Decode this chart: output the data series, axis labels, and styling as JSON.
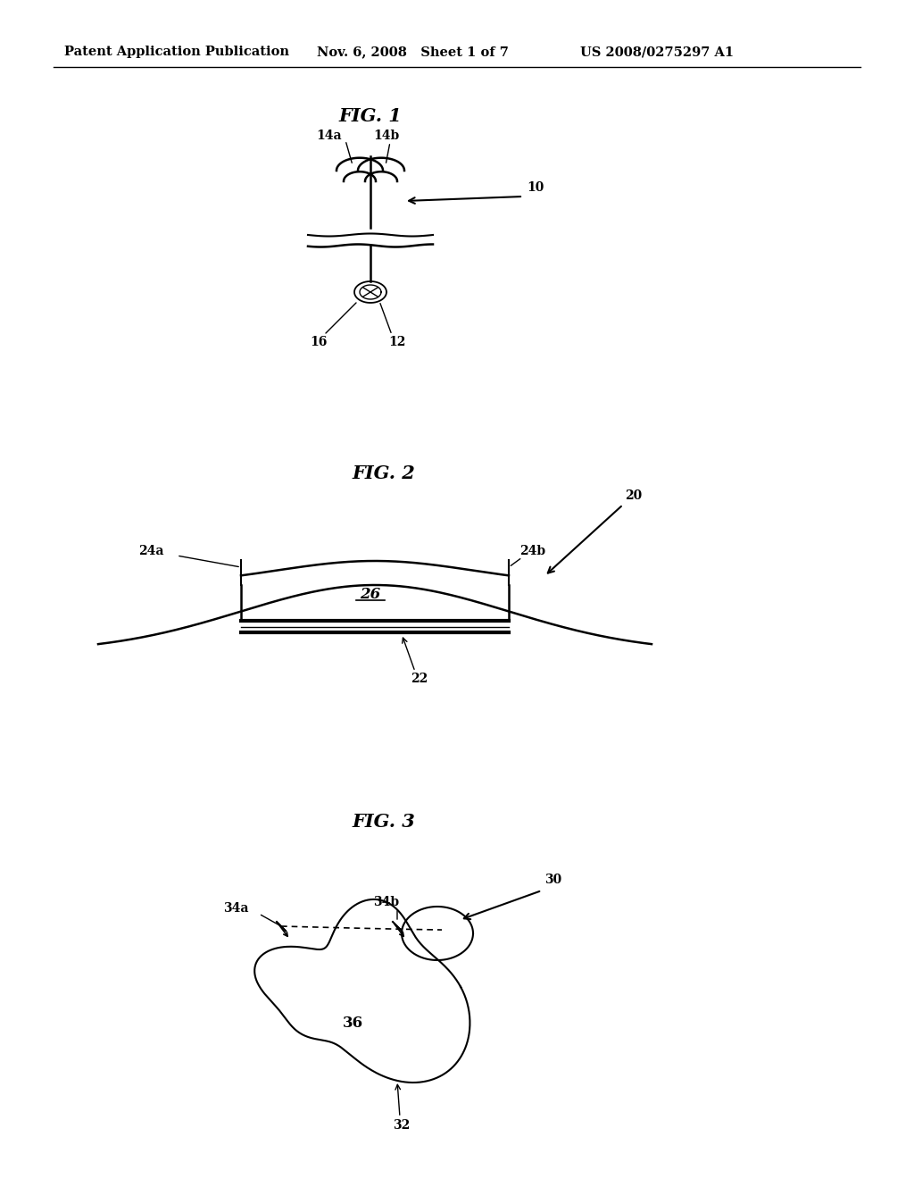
{
  "bg_color": "#ffffff",
  "header_left": "Patent Application Publication",
  "header_mid": "Nov. 6, 2008   Sheet 1 of 7",
  "header_right": "US 2008/0275297 A1",
  "fig1_title": "FIG. 1",
  "fig2_title": "FIG. 2",
  "fig3_title": "FIG. 3",
  "label_10": "10",
  "label_12": "12",
  "label_14a": "14a",
  "label_14b": "14b",
  "label_16": "16",
  "label_20": "20",
  "label_22": "22",
  "label_24a": "24a",
  "label_24b": "24b",
  "label_26": "26",
  "label_30": "30",
  "label_32": "32",
  "label_34a": "34a",
  "label_34b": "34b",
  "label_36": "36"
}
